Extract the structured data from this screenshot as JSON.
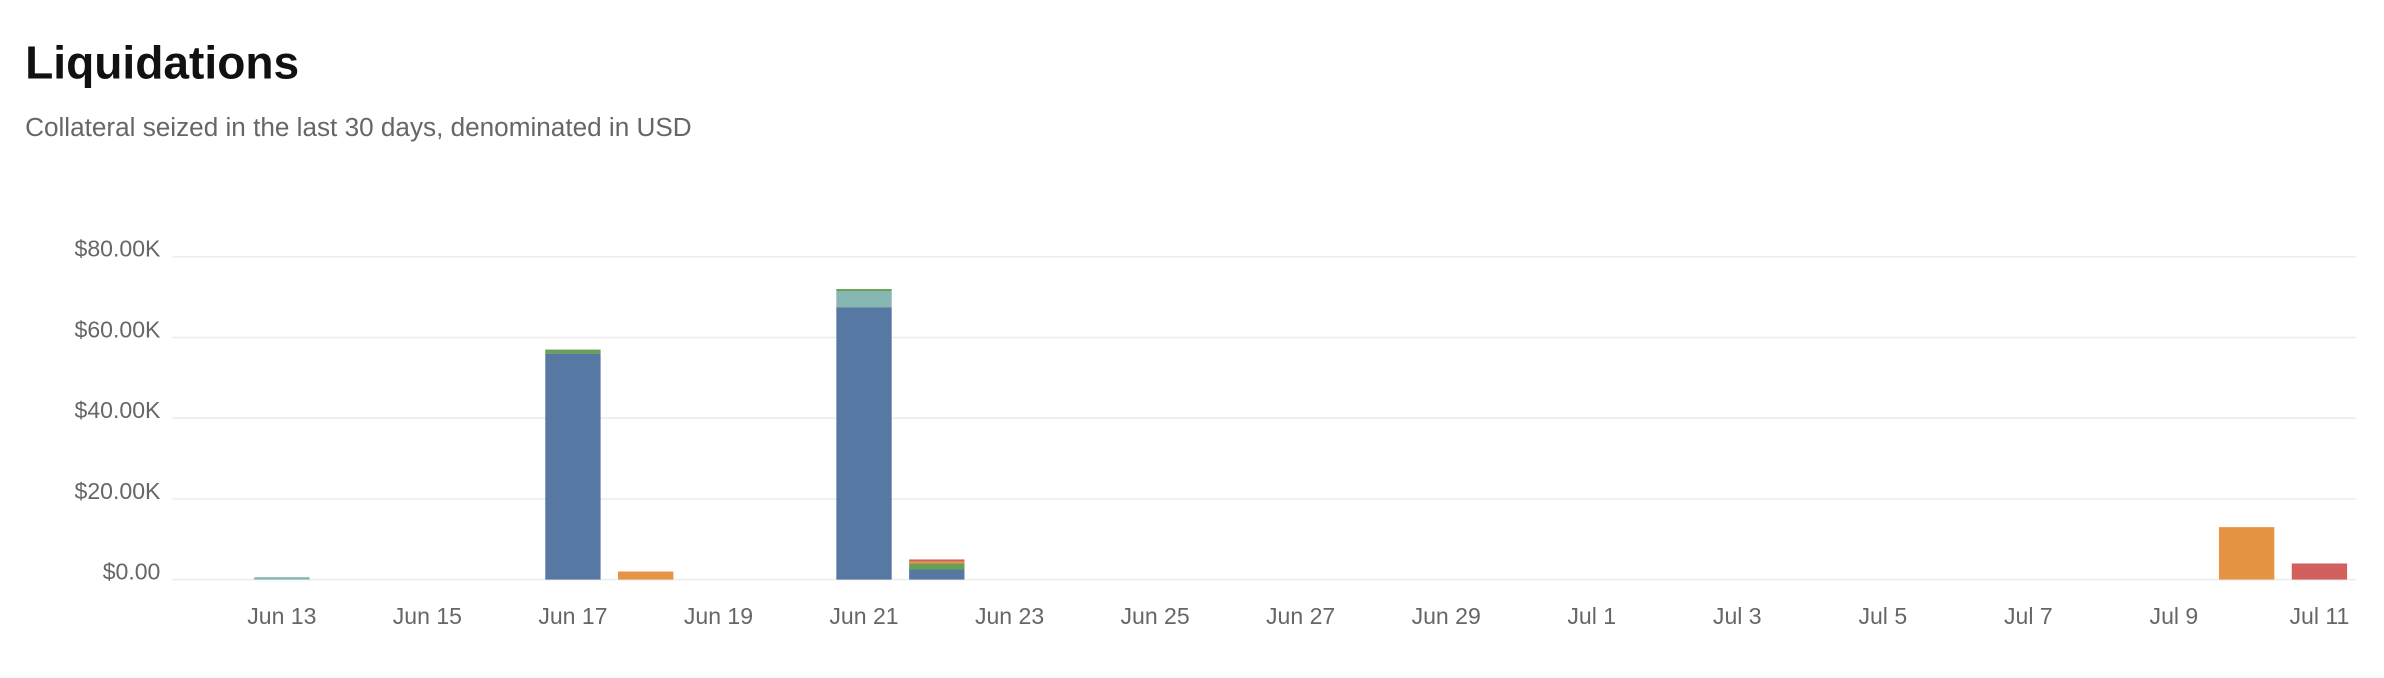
{
  "chart_data": {
    "type": "stacked-bar",
    "title": "Liquidations",
    "subtitle": "Collateral seized in the last 30 days, denominated in USD",
    "categories": [
      null,
      "Jun 13",
      null,
      "Jun 15",
      null,
      "Jun 17",
      null,
      "Jun 19",
      null,
      "Jun 21",
      null,
      "Jun 23",
      null,
      "Jun 25",
      null,
      "Jun 27",
      null,
      "Jun 29",
      null,
      "Jul 1",
      null,
      "Jul 3",
      null,
      "Jul 5",
      null,
      "Jul 7",
      null,
      "Jul 9",
      null,
      "Jul 11"
    ],
    "series": [
      {
        "color": "#5878a4",
        "values": [
          0,
          0,
          0,
          0,
          0,
          56000,
          0,
          0,
          0,
          67500,
          2500,
          0,
          0,
          0,
          0,
          0,
          0,
          0,
          0,
          0,
          0,
          0,
          0,
          0,
          0,
          0,
          0,
          0,
          0,
          0
        ]
      },
      {
        "color": "#86b7b2",
        "values": [
          0,
          600,
          0,
          0,
          0,
          0,
          0,
          0,
          0,
          4000,
          0,
          0,
          0,
          0,
          0,
          0,
          0,
          0,
          0,
          0,
          0,
          0,
          0,
          0,
          0,
          0,
          0,
          0,
          0,
          0
        ]
      },
      {
        "color": "#6a9f58",
        "values": [
          0,
          0,
          0,
          0,
          0,
          1000,
          0,
          0,
          0,
          500,
          1500,
          0,
          0,
          0,
          0,
          0,
          0,
          0,
          0,
          0,
          0,
          0,
          0,
          0,
          0,
          0,
          0,
          0,
          0,
          0
        ]
      },
      {
        "color": "#e49444",
        "values": [
          0,
          0,
          0,
          0,
          0,
          0,
          2000,
          0,
          0,
          0,
          500,
          0,
          0,
          0,
          0,
          0,
          0,
          0,
          0,
          0,
          0,
          0,
          0,
          0,
          0,
          0,
          0,
          0,
          13000,
          0
        ]
      },
      {
        "color": "#d1605e",
        "values": [
          0,
          0,
          0,
          0,
          0,
          0,
          0,
          0,
          0,
          0,
          500,
          0,
          0,
          0,
          0,
          0,
          0,
          0,
          0,
          0,
          0,
          0,
          0,
          0,
          0,
          0,
          0,
          0,
          0,
          4000
        ]
      }
    ],
    "ylim": [
      0,
      80000
    ],
    "yticks": [
      {
        "value": 0,
        "label": "$0.00"
      },
      {
        "value": 20000,
        "label": "$20.00K"
      },
      {
        "value": 40000,
        "label": "$40.00K"
      },
      {
        "value": 60000,
        "label": "$60.00K"
      },
      {
        "value": 80000,
        "label": "$80.00K"
      }
    ],
    "grid": true
  }
}
